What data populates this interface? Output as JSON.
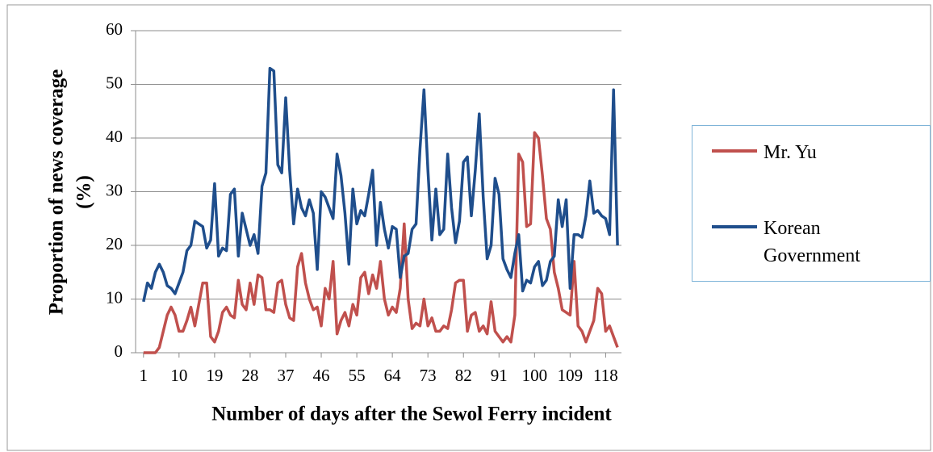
{
  "chart_data": {
    "type": "line",
    "ylabel": [
      "Proportion of news coverage",
      "(%)"
    ],
    "xlabel": "Number of days after the Sewol Ferry incident",
    "x": [
      1,
      2,
      3,
      4,
      5,
      6,
      7,
      8,
      9,
      10,
      11,
      12,
      13,
      14,
      15,
      16,
      17,
      18,
      19,
      20,
      21,
      22,
      23,
      24,
      25,
      26,
      27,
      28,
      29,
      30,
      31,
      32,
      33,
      34,
      35,
      36,
      37,
      38,
      39,
      40,
      41,
      42,
      43,
      44,
      45,
      46,
      47,
      48,
      49,
      50,
      51,
      52,
      53,
      54,
      55,
      56,
      57,
      58,
      59,
      60,
      61,
      62,
      63,
      64,
      65,
      66,
      67,
      68,
      69,
      70,
      71,
      72,
      73,
      74,
      75,
      76,
      77,
      78,
      79,
      80,
      81,
      82,
      83,
      84,
      85,
      86,
      87,
      88,
      89,
      90,
      91,
      92,
      93,
      94,
      95,
      96,
      97,
      98,
      99,
      100,
      101,
      102,
      103,
      104,
      105,
      106,
      107,
      108,
      109,
      110,
      111,
      112,
      113,
      114,
      115,
      116,
      117,
      118,
      119,
      120,
      121
    ],
    "series": [
      {
        "name": "Mr. Yu",
        "color": "#c0504d",
        "values": [
          0,
          0,
          0,
          0,
          1,
          4,
          7,
          8.5,
          7,
          4,
          4,
          6,
          8.5,
          5,
          9,
          13,
          13,
          3,
          2,
          4,
          7.5,
          8.5,
          7,
          6.5,
          13.5,
          9,
          8,
          13,
          9,
          14.5,
          14,
          8,
          8,
          7.5,
          13,
          13.5,
          9,
          6.5,
          6,
          16,
          18.5,
          13,
          10,
          8,
          8.5,
          5,
          12,
          10,
          17,
          3.5,
          6,
          7.5,
          5,
          9,
          7,
          14,
          15,
          11,
          14.5,
          12,
          17,
          10,
          7,
          8.5,
          7.5,
          12,
          24,
          10,
          4.5,
          5.5,
          5,
          10,
          5,
          6.5,
          4,
          4,
          5,
          4.5,
          8,
          13,
          13.5,
          13.5,
          4,
          7,
          7.5,
          4,
          5,
          3.5,
          9.5,
          4,
          3,
          2,
          3,
          2,
          7,
          37,
          35.5,
          23.5,
          24,
          41,
          40,
          33,
          25,
          23,
          15,
          12,
          8,
          7.5,
          7,
          17,
          5,
          4,
          2,
          4,
          6,
          12,
          11,
          4,
          5,
          3,
          1
        ]
      },
      {
        "name": "Korean Government",
        "color": "#1f4e8c",
        "values": [
          9.5,
          13,
          12,
          15,
          16.5,
          15,
          12.5,
          12,
          11,
          13,
          15,
          19,
          20,
          24.5,
          24,
          23.5,
          19.5,
          21,
          31.5,
          18,
          19.5,
          19,
          29.5,
          30.5,
          18,
          26,
          23,
          20,
          22,
          18.5,
          31,
          33.5,
          53,
          52.5,
          35,
          33.5,
          47.5,
          34,
          24,
          30.5,
          27,
          25.5,
          28.5,
          26,
          15.5,
          30,
          29,
          27,
          25,
          37,
          33,
          26,
          16.5,
          30.5,
          24,
          26.5,
          25.5,
          29.5,
          34,
          20,
          28,
          23,
          19.5,
          23.5,
          23,
          14,
          18,
          18.5,
          23,
          24,
          38,
          49,
          34,
          21,
          30.5,
          22,
          23,
          37,
          27,
          20.5,
          24.5,
          35.5,
          36.5,
          25.5,
          34,
          44.5,
          29,
          17.5,
          20,
          32.5,
          29.5,
          17.5,
          15.5,
          14,
          18.5,
          22,
          11.5,
          13.5,
          13,
          16,
          17,
          12.5,
          13.5,
          17,
          18,
          28.5,
          23.5,
          28.5,
          12,
          22,
          22,
          21.5,
          25.5,
          32,
          26,
          26.5,
          25.5,
          25,
          22,
          49,
          20
        ]
      }
    ],
    "xlim": [
      -1,
      122
    ],
    "xticks": [
      1,
      10,
      19,
      28,
      37,
      46,
      55,
      64,
      73,
      82,
      91,
      100,
      109,
      118
    ],
    "ylim": [
      0,
      60
    ],
    "yticks": [
      0,
      10,
      20,
      30,
      40,
      50,
      60
    ],
    "grid": true
  }
}
